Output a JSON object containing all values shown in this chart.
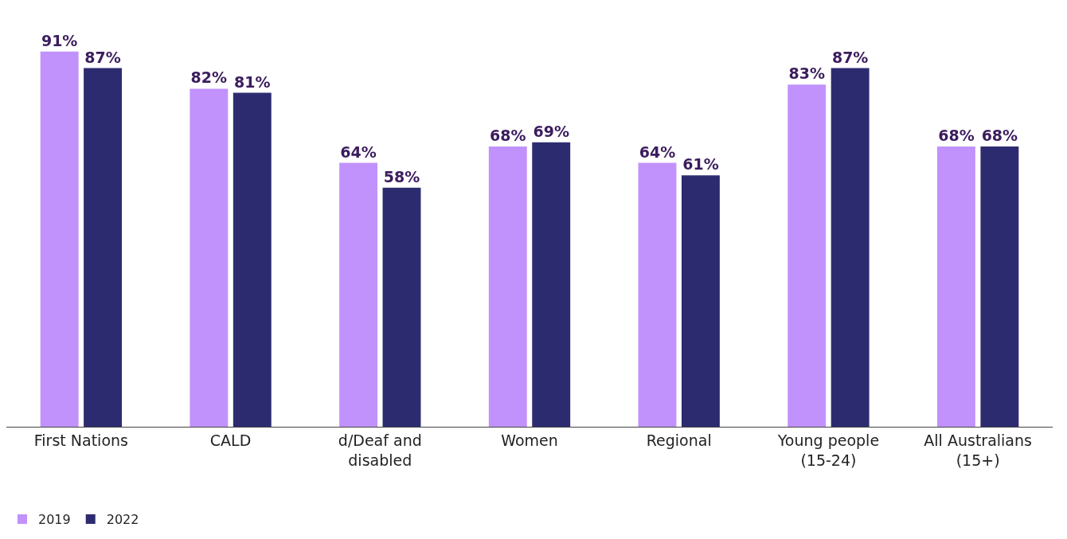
{
  "chart_data": {
    "type": "bar",
    "categories": [
      "First Nations",
      "CALD",
      "d/Deaf and disabled",
      "Women",
      "Regional",
      "Young people (15-24)",
      "All Australians (15+)"
    ],
    "series": [
      {
        "name": "2019",
        "color": "#c192fc",
        "values": [
          91,
          82,
          64,
          68,
          64,
          83,
          68
        ],
        "value_labels": [
          "91%",
          "82%",
          "64%",
          "68%",
          "64%",
          "83%",
          "68%"
        ]
      },
      {
        "name": "2022",
        "color": "#2d2b70",
        "values": [
          87,
          81,
          58,
          69,
          61,
          87,
          68
        ],
        "value_labels": [
          "87%",
          "81%",
          "58%",
          "69%",
          "61%",
          "87%",
          "68%"
        ]
      }
    ],
    "legend": "bottom left"
  }
}
